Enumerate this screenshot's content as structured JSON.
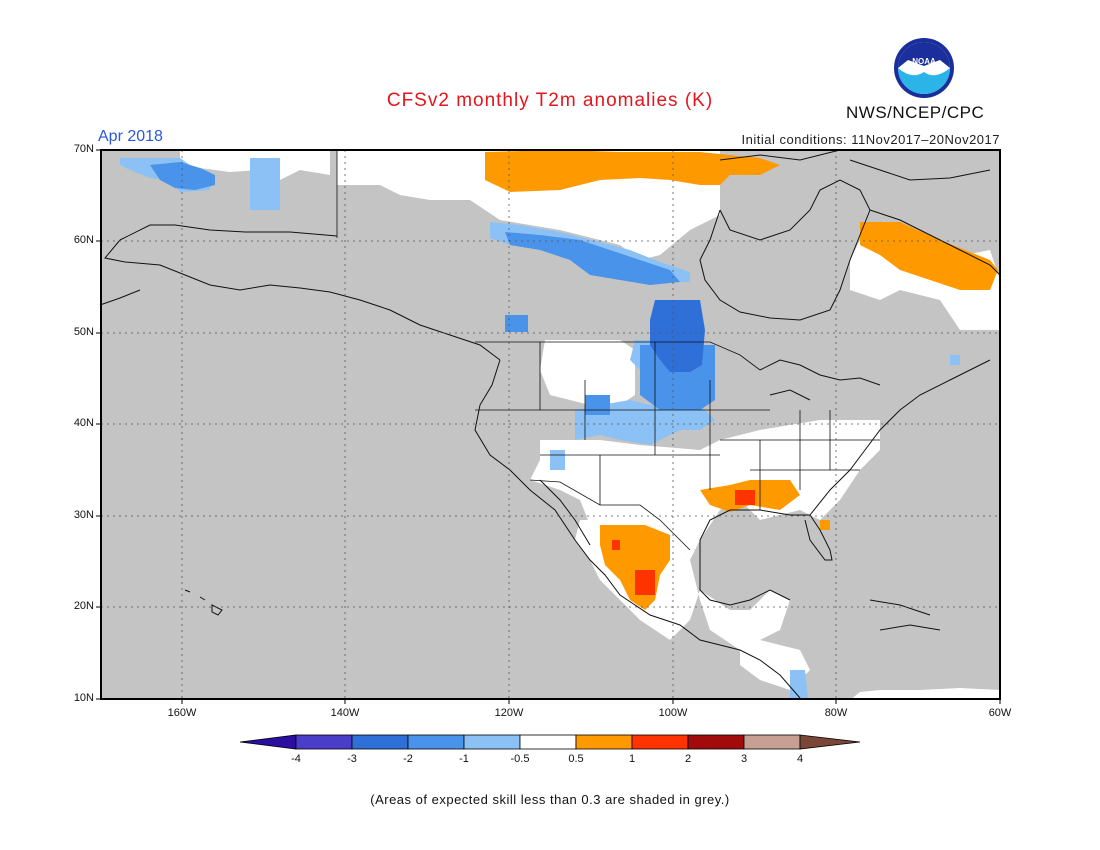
{
  "title": "CFSv2 monthly T2m anomalies (K)",
  "period": "Apr 2018",
  "initial_conditions": "Initial conditions: 11Nov2017–20Nov2017",
  "agency": "NWS/NCEP/CPC",
  "logo_text": "NOAA",
  "footnote": "(Areas of expected skill less than 0.3 are shaded in grey.)",
  "map": {
    "lat_labels": [
      "70N",
      "60N",
      "50N",
      "40N",
      "30N",
      "20N",
      "10N"
    ],
    "lon_labels": [
      "160W",
      "140W",
      "120W",
      "100W",
      "80W",
      "60W"
    ],
    "lat_range": [
      10,
      70
    ],
    "lon_range": [
      -170,
      -60
    ],
    "low_skill_color": "#c4c4c4",
    "map_frame_color": "#000000"
  },
  "colorbar": {
    "labels": [
      "-4",
      "-3",
      "-2",
      "-1",
      "-0.5",
      "0.5",
      "1",
      "2",
      "3",
      "4"
    ],
    "colors": [
      "#2a0fa0",
      "#4a3ec9",
      "#2f6fd8",
      "#4a93ea",
      "#8cc1f5",
      "#ffffff",
      "#ff9900",
      "#ff3300",
      "#a10b0b",
      "#c8a093",
      "#7a4637"
    ]
  },
  "legend_colors": {
    "cold_strong": "#2f6fd8",
    "cold": "#4a93ea",
    "cool": "#8cc1f5",
    "neutral": "#ffffff",
    "warm": "#ff9900",
    "warmer": "#ff3300"
  }
}
